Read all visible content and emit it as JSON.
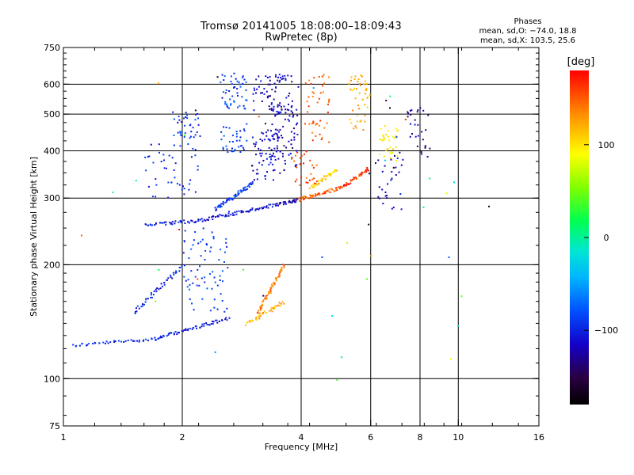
{
  "title": "Tromsø 20141005 18:08:00–18:09:43",
  "subtitle": "RwPretec (8p)",
  "phase_info": {
    "heading": "Phases",
    "line1": "mean, sd,O: −74.0, 18.8",
    "line2": "mean, sd,X: 103.5, 25.6"
  },
  "colorbar": {
    "unit_label": "[deg]",
    "range": [
      -180,
      180
    ],
    "ticks": [
      {
        "value": 100,
        "label": "100"
      },
      {
        "value": 0,
        "label": "0"
      },
      {
        "value": -100,
        "label": "−100"
      }
    ]
  },
  "chart_data": {
    "type": "scatter",
    "xlabel": "Frequency [MHz]",
    "ylabel": "Stationary phase Virtual Height [km]",
    "xscale": "log",
    "yscale": "log",
    "xlim": [
      1,
      16
    ],
    "ylim": [
      75,
      750
    ],
    "xticks": [
      {
        "value": 1,
        "label": "1"
      },
      {
        "value": 2,
        "label": "2"
      },
      {
        "value": 4,
        "label": "4"
      },
      {
        "value": 6,
        "label": "6"
      },
      {
        "value": 8,
        "label": "8"
      },
      {
        "value": 10,
        "label": "10"
      },
      {
        "value": 16,
        "label": "16"
      }
    ],
    "yticks": [
      {
        "value": 75,
        "label": "75"
      },
      {
        "value": 100,
        "label": "100"
      },
      {
        "value": 200,
        "label": "200"
      },
      {
        "value": 300,
        "label": "300"
      },
      {
        "value": 400,
        "label": "400"
      },
      {
        "value": 500,
        "label": "500"
      },
      {
        "value": 600,
        "label": "600"
      },
      {
        "value": 750,
        "label": "750"
      }
    ],
    "grid_x": [
      2,
      4,
      6,
      8,
      10
    ],
    "grid_y": [
      100,
      200,
      300,
      400,
      500,
      600
    ],
    "traces": [
      {
        "f0": 1.05,
        "f1": 1.7,
        "h0": 123,
        "h1": 128,
        "phase": -95,
        "n": 40
      },
      {
        "f0": 1.7,
        "f1": 2.6,
        "h0": 128,
        "h1": 145,
        "phase": -105,
        "n": 60
      },
      {
        "f0": 1.5,
        "f1": 2.0,
        "h0": 150,
        "h1": 200,
        "phase": -100,
        "n": 45
      },
      {
        "f0": 2.0,
        "f1": 2.6,
        "h0": 150,
        "h1": 250,
        "phase": -90,
        "n": 70
      },
      {
        "f0": 1.6,
        "f1": 2.2,
        "h0": 255,
        "h1": 263,
        "phase": -100,
        "n": 40
      },
      {
        "f0": 2.2,
        "f1": 3.5,
        "h0": 263,
        "h1": 290,
        "phase": -110,
        "n": 70
      },
      {
        "f0": 3.5,
        "f1": 3.9,
        "h0": 290,
        "h1": 298,
        "phase": -120,
        "n": 25
      },
      {
        "f0": 3.9,
        "f1": 5.0,
        "h0": 298,
        "h1": 320,
        "phase": 150,
        "n": 50
      },
      {
        "f0": 5.0,
        "f1": 5.9,
        "h0": 320,
        "h1": 360,
        "phase": 165,
        "n": 40
      },
      {
        "f0": 1.6,
        "f1": 2.2,
        "h0": 300,
        "h1": 420,
        "phase": -95,
        "n": 45
      },
      {
        "f0": 1.9,
        "f1": 2.2,
        "h0": 430,
        "h1": 510,
        "phase": -90,
        "n": 35
      },
      {
        "f0": 2.4,
        "f1": 3.0,
        "h0": 280,
        "h1": 330,
        "phase": -92,
        "n": 60
      },
      {
        "f0": 2.5,
        "f1": 2.9,
        "h0": 400,
        "h1": 470,
        "phase": -90,
        "n": 35
      },
      {
        "f0": 2.5,
        "f1": 2.9,
        "h0": 520,
        "h1": 640,
        "phase": -88,
        "n": 50
      },
      {
        "f0": 3.0,
        "f1": 3.5,
        "h0": 330,
        "h1": 450,
        "phase": -115,
        "n": 60
      },
      {
        "f0": 3.3,
        "f1": 3.9,
        "h0": 350,
        "h1": 640,
        "phase": -120,
        "n": 110
      },
      {
        "f0": 3.0,
        "f1": 3.6,
        "h0": 500,
        "h1": 640,
        "phase": -115,
        "n": 40
      },
      {
        "f0": 3.8,
        "f1": 4.4,
        "h0": 320,
        "h1": 400,
        "phase": 155,
        "n": 30
      },
      {
        "f0": 4.2,
        "f1": 4.9,
        "h0": 320,
        "h1": 360,
        "phase": 110,
        "n": 35
      },
      {
        "f0": 4.1,
        "f1": 4.7,
        "h0": 420,
        "h1": 640,
        "phase": 150,
        "n": 45
      },
      {
        "f0": 5.3,
        "f1": 5.9,
        "h0": 450,
        "h1": 640,
        "phase": 120,
        "n": 45
      },
      {
        "f0": 3.1,
        "f1": 3.6,
        "h0": 150,
        "h1": 200,
        "phase": 140,
        "n": 55
      },
      {
        "f0": 2.9,
        "f1": 3.6,
        "h0": 140,
        "h1": 160,
        "phase": 120,
        "n": 40
      },
      {
        "f0": 6.3,
        "f1": 7.0,
        "h0": 380,
        "h1": 470,
        "phase": 95,
        "n": 35
      },
      {
        "f0": 6.2,
        "f1": 7.2,
        "h0": 280,
        "h1": 400,
        "phase": -115,
        "n": 30
      },
      {
        "f0": 7.4,
        "f1": 8.4,
        "h0": 390,
        "h1": 520,
        "phase": -125,
        "n": 30
      },
      {
        "f0": 1.1,
        "f1": 13,
        "h0": 95,
        "h1": 680,
        "phase": 0,
        "n": 45,
        "random_phase": true
      }
    ]
  }
}
